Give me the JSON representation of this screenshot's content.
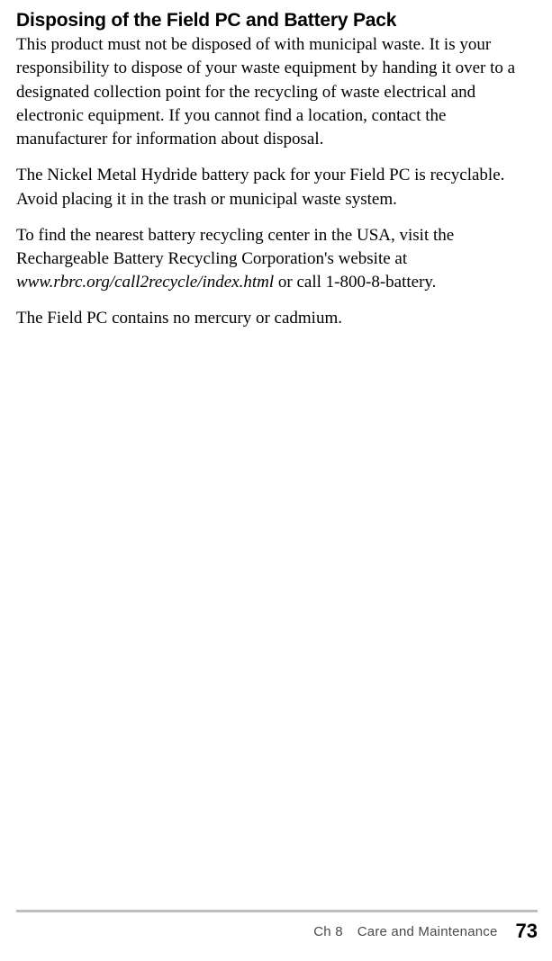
{
  "heading": "Disposing of the Field PC and Battery Pack",
  "p1": "This product must not be disposed of with municipal waste. It is your responsibility to dispose of your waste equipment by handing it over to a designated collection point for the recycling of waste electrical and electronic equipment. If you cannot find a location, contact the manufacturer for information about disposal.",
  "p2": "The Nickel Metal Hydride battery pack for your Field PC is recyclable. Avoid placing it in the trash or municipal waste system.",
  "p3_a": "To find the nearest battery recycling center in the USA, visit the Rechargeable Battery Recycling Corporation's website at ",
  "p3_url": "www.rbrc.org/call2recycle/index.html",
  "p3_b": " or call 1-800-8-battery.",
  "p4": "The Field PC contains no mercury or cadmium.",
  "footer_chapter": "Ch 8",
  "footer_title": "Care and Maintenance",
  "footer_page": "73"
}
